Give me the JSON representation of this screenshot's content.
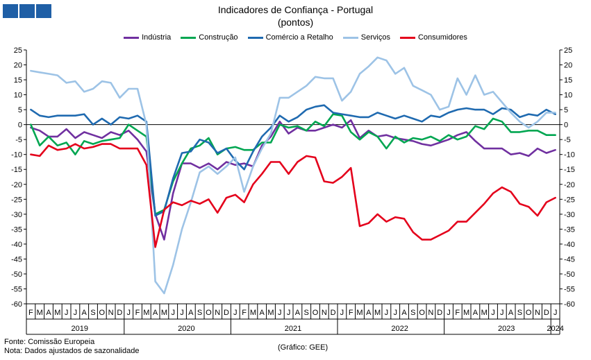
{
  "title": "Indicadores de Confiança - Portugal",
  "subtitle": "(pontos)",
  "footer": {
    "source": "Fonte: Comissão Europeia",
    "note": "Nota: Dados ajustados de sazonalidade",
    "credit": "(Gráfico: GEE)"
  },
  "chart_data": {
    "type": "line",
    "ylim": [
      -60,
      25
    ],
    "yticks": [
      25,
      20,
      15,
      10,
      5,
      0,
      -5,
      -10,
      -15,
      -20,
      -25,
      -30,
      -35,
      -40,
      -45,
      -50,
      -55,
      -60
    ],
    "grid": false,
    "legend_position": "top",
    "month_labels": [
      "F",
      "M",
      "A",
      "M",
      "J",
      "J",
      "A",
      "S",
      "O",
      "N",
      "D",
      "J",
      "F",
      "M",
      "A",
      "M",
      "J",
      "J",
      "A",
      "S",
      "O",
      "N",
      "D",
      "J",
      "F",
      "M",
      "A",
      "M",
      "J",
      "J",
      "A",
      "S",
      "O",
      "N",
      "D",
      "J",
      "F",
      "M",
      "A",
      "M",
      "J",
      "J",
      "A",
      "S",
      "O",
      "N",
      "D",
      "J",
      "F",
      "M",
      "A",
      "M",
      "J",
      "J",
      "A",
      "S",
      "O",
      "N",
      "D",
      "J"
    ],
    "year_labels": [
      {
        "label": "2019",
        "center": 5.5
      },
      {
        "label": "2020",
        "center": 17.5
      },
      {
        "label": "2021",
        "center": 29.5
      },
      {
        "label": "2022",
        "center": 41.5
      },
      {
        "label": "2023",
        "center": 53.5
      },
      {
        "label": "2024",
        "center": 59
      }
    ],
    "year_boundaries": [
      11,
      23,
      35,
      47,
      59
    ],
    "series": [
      {
        "name": "Indústria",
        "color": "#7030a0",
        "values": [
          -1,
          -2,
          -4,
          -4,
          -1.5,
          -4.5,
          -2.5,
          -3.5,
          -4.5,
          -2.5,
          -3.5,
          -2,
          -5,
          -9,
          -30,
          -38.5,
          -23,
          -13,
          -13,
          -14.5,
          -13,
          -15,
          -12.5,
          -13.5,
          -13,
          -14,
          -7,
          -4,
          1,
          -3,
          -1,
          -2,
          -2,
          -1,
          0,
          -1,
          1.5,
          -4.5,
          -2,
          -4,
          -3.5,
          -4.5,
          -5,
          -5.5,
          -6.5,
          -7,
          -6,
          -5,
          -3.5,
          -2.5,
          -5.5,
          -8,
          -8,
          -8,
          -10,
          -9.5,
          -10.5,
          -8,
          -9.5,
          -8.5
        ]
      },
      {
        "name": "Construção",
        "color": "#00a651",
        "values": [
          0,
          -7,
          -4,
          -7,
          -6,
          -10,
          -5.5,
          -6.5,
          -5.5,
          -5,
          -4.5,
          0,
          -2,
          -4,
          -30,
          -28.5,
          -19,
          -13,
          -8,
          -7,
          -4.5,
          -10,
          -8,
          -7.5,
          -8.5,
          -8.5,
          -6,
          -6,
          0,
          -1,
          -0.5,
          -2,
          1,
          -0.5,
          3.5,
          3,
          -2.5,
          -5,
          -2.5,
          -4,
          -8,
          -4,
          -6,
          -4.5,
          -5,
          -4,
          -5.5,
          -3.5,
          -5,
          -4,
          -0.5,
          -1.5,
          2,
          1,
          -2.5,
          -2.5,
          -2,
          -2,
          -3.5,
          -3.5
        ]
      },
      {
        "name": "Comércio a Retalho",
        "color": "#1f6ab0",
        "values": [
          5,
          3,
          2.5,
          3,
          3,
          3,
          3.5,
          0,
          2,
          0,
          2.5,
          2,
          3,
          1,
          -30.5,
          -29,
          -18,
          -9.5,
          -9,
          -5,
          -6,
          -9.5,
          -8,
          -12,
          -15,
          -9,
          -4,
          -1,
          3,
          1,
          2.5,
          5,
          6,
          6.5,
          4,
          3.5,
          3,
          2.5,
          2.5,
          4,
          3,
          2,
          3,
          2,
          1,
          3,
          2.5,
          4,
          5,
          5.5,
          5,
          5,
          3.5,
          5.5,
          5,
          2.5,
          3.5,
          3,
          5,
          3.5
        ]
      },
      {
        "name": "Serviços",
        "color": "#9dc3e6",
        "values": [
          18,
          17.5,
          17,
          16.5,
          14,
          14.5,
          11,
          12,
          14.5,
          14,
          9,
          12,
          12,
          0,
          -52.5,
          -56.5,
          -47,
          -35,
          -26,
          -16,
          -14,
          -16.5,
          -14,
          -11,
          -22.5,
          -14,
          -8,
          -3,
          9,
          9,
          11,
          13,
          16,
          15.5,
          15.5,
          8,
          11,
          17,
          19.5,
          22.5,
          21.5,
          17,
          19,
          13,
          11.5,
          10,
          5,
          6,
          15.5,
          10,
          16.5,
          10,
          11,
          7.5,
          4,
          1,
          -1,
          1,
          4,
          4
        ]
      },
      {
        "name": "Consumidores",
        "color": "#e4001b",
        "values": [
          -10,
          -10.5,
          -7,
          -8.5,
          -8,
          -6.5,
          -8,
          -7.5,
          -6.5,
          -6.5,
          -8,
          -8,
          -8,
          -13.5,
          -41,
          -28.5,
          -26,
          -27,
          -25.5,
          -26.5,
          -25,
          -29.5,
          -24.5,
          -23.5,
          -26,
          -20,
          -16.5,
          -12.5,
          -12.5,
          -16.5,
          -12.5,
          -10.5,
          -11,
          -19,
          -19.5,
          -17.5,
          -14.5,
          -34,
          -33,
          -30,
          -32.5,
          -31,
          -31.5,
          -36,
          -38.5,
          -38.5,
          -37,
          -35.5,
          -32.5,
          -32.5,
          -29.5,
          -26.5,
          -23,
          -21,
          -22.5,
          -26.5,
          -27.5,
          -30.5,
          -26,
          -24.5
        ]
      }
    ]
  }
}
